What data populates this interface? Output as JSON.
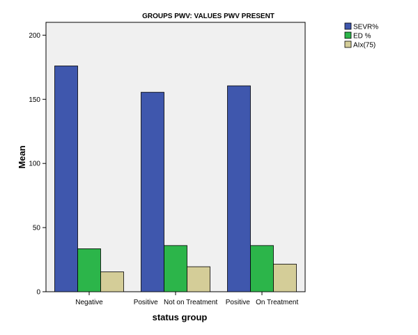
{
  "chart_data": {
    "type": "bar",
    "title": "GROUPS PWV: VALUES PWV PRESENT",
    "xlabel": "status group",
    "ylabel": "Mean",
    "categories": [
      "Negative",
      "Positive   Not on Treatment",
      "Positive   On Treatment"
    ],
    "series": [
      {
        "name": "SEVR%",
        "color": "#3f57ad",
        "values": [
          176,
          155.5,
          160.5
        ]
      },
      {
        "name": "ED %",
        "color": "#2cb54a",
        "values": [
          33.5,
          36,
          36
        ]
      },
      {
        "name": "AIx(75)",
        "color": "#d4cd98",
        "values": [
          15.5,
          19.5,
          21.5
        ]
      }
    ],
    "ylim": [
      0,
      210
    ],
    "yticks": [
      0,
      50,
      100,
      150,
      200
    ],
    "grid": false,
    "legend_position": "top-right",
    "plot_background": "#f0f0f0"
  }
}
